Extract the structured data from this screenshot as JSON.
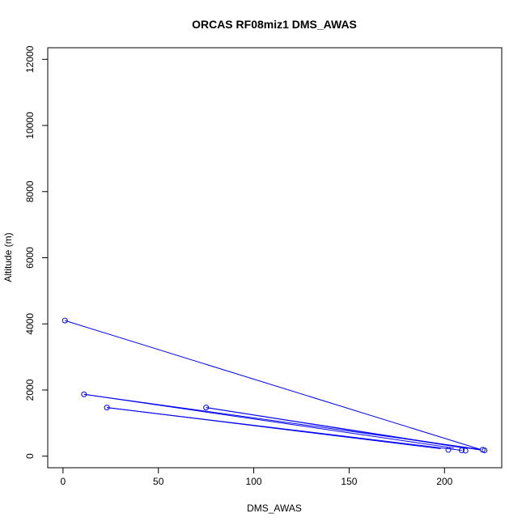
{
  "chart_data": {
    "type": "scatter",
    "title": "ORCAS RF08miz1 DMS_AWAS",
    "xlabel": "DMS_AWAS",
    "ylabel": "Altitude (m)",
    "xlim": [
      -8,
      230
    ],
    "ylim": [
      -350,
      12350
    ],
    "xticks": [
      0,
      50,
      100,
      150,
      200
    ],
    "yticks": [
      0,
      2000,
      4000,
      6000,
      8000,
      10000,
      12000
    ],
    "grid": false,
    "connected_lines": true,
    "color": "#0000ff",
    "points": [
      {
        "x": 1,
        "y": 4100
      },
      {
        "x": 11,
        "y": 1870
      },
      {
        "x": 23,
        "y": 1470
      },
      {
        "x": 75,
        "y": 1470
      },
      {
        "x": 202,
        "y": 190
      },
      {
        "x": 209,
        "y": 175
      },
      {
        "x": 211,
        "y": 165
      },
      {
        "x": 220,
        "y": 195
      },
      {
        "x": 221,
        "y": 175
      }
    ],
    "line_segments": [
      [
        {
          "x": 1,
          "y": 4100
        },
        {
          "x": 219,
          "y": 200
        }
      ],
      [
        {
          "x": 11,
          "y": 1870
        },
        {
          "x": 219,
          "y": 205
        }
      ],
      [
        {
          "x": 11,
          "y": 1870
        },
        {
          "x": 205,
          "y": 245
        }
      ],
      [
        {
          "x": 23,
          "y": 1470
        },
        {
          "x": 209,
          "y": 175
        }
      ],
      [
        {
          "x": 23,
          "y": 1470
        },
        {
          "x": 198,
          "y": 225
        }
      ],
      [
        {
          "x": 75,
          "y": 1470
        },
        {
          "x": 219,
          "y": 185
        }
      ],
      [
        {
          "x": 75,
          "y": 1470
        },
        {
          "x": 212,
          "y": 230
        }
      ]
    ]
  }
}
